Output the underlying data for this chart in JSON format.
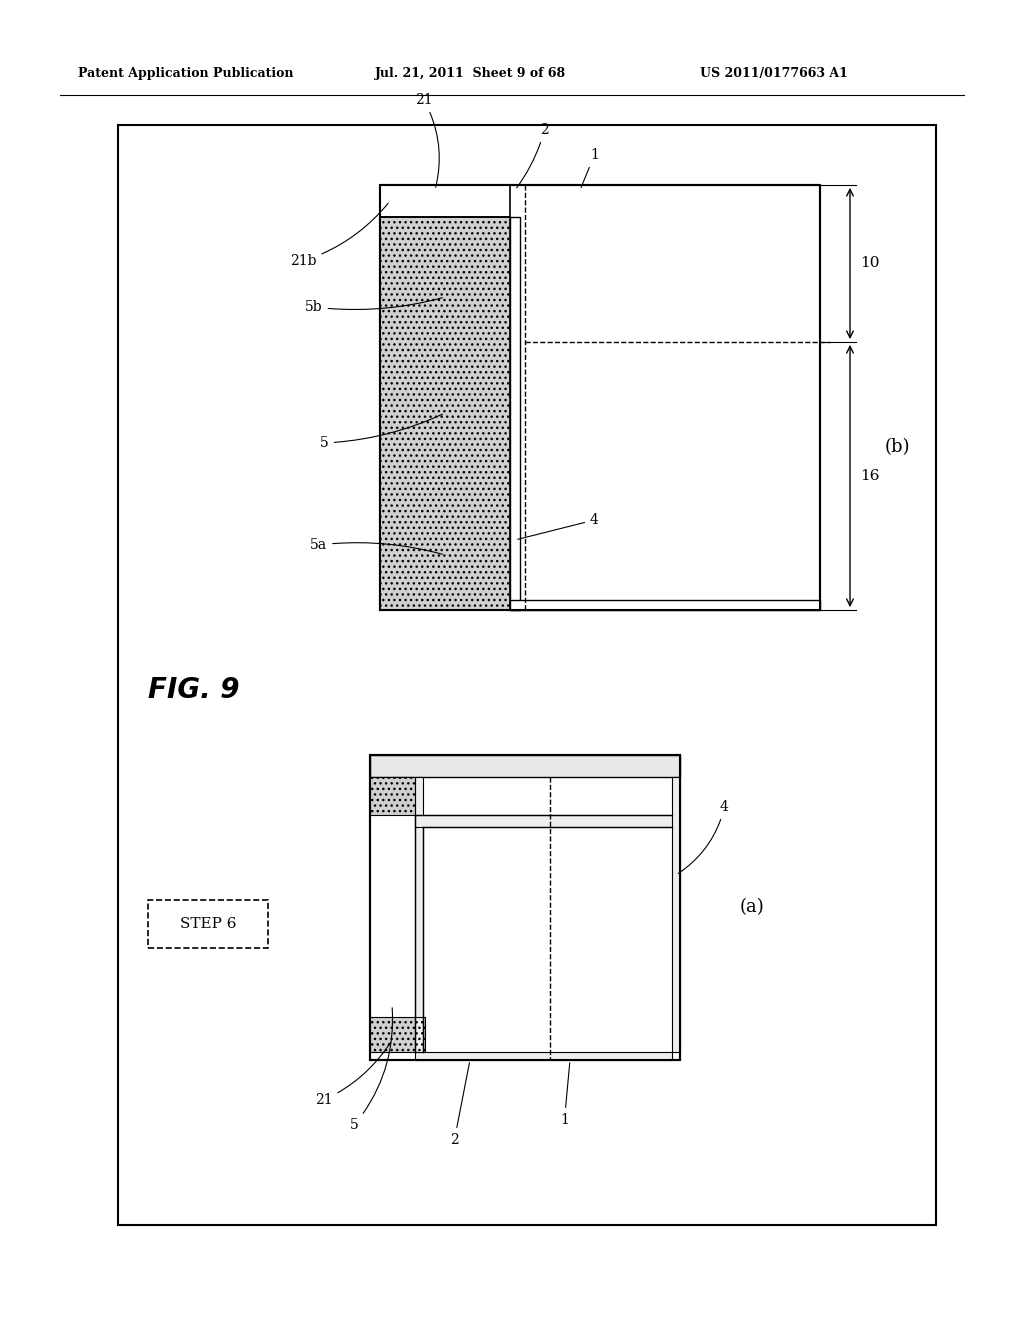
{
  "header_left": "Patent Application Publication",
  "header_middle": "Jul. 21, 2011  Sheet 9 of 68",
  "header_right": "US 2011/0177663 A1",
  "fig_label": "FIG. 9",
  "step_label": "STEP 6",
  "sub_a": "(a)",
  "sub_b": "(b)",
  "bg_color": "#ffffff"
}
